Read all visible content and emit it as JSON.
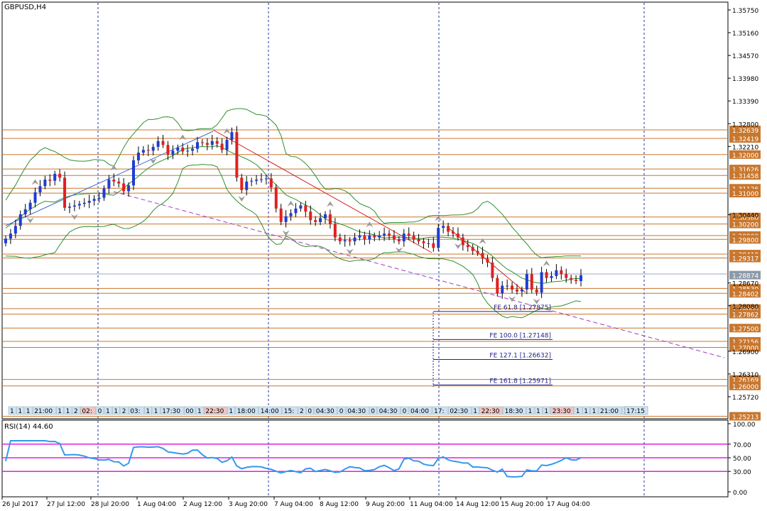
{
  "chart_data": {
    "type": "candlestick",
    "title": "GBPUSD,H4",
    "price_axis": {
      "range": [
        1.25,
        1.36
      ],
      "ticks": [
        "1.35750",
        "1.35160",
        "1.34570",
        "1.33980",
        "1.33390",
        "1.32800",
        "1.32210",
        "1.30440",
        "1.28670",
        "1.28080",
        "1.26900",
        "1.26310",
        "1.25720"
      ]
    },
    "x_axis": {
      "ticks": [
        "26 Jul 2017",
        "27 Jul 12:00",
        "28 Jul 20:00",
        "1 Aug 04:00",
        "2 Aug 12:00",
        "3 Aug 20:00",
        "7 Aug 04:00",
        "8 Aug 12:00",
        "9 Aug 20:00",
        "11 Aug 04:00",
        "14 Aug 12:00",
        "15 Aug 20:00",
        "17 Aug 04:00"
      ]
    },
    "current_price": "1.28874",
    "level_lines": [
      {
        "price": 1.32639,
        "label": "1.32639"
      },
      {
        "price": 1.32419,
        "label": "1.32419"
      },
      {
        "price": 1.32,
        "label": "1.32000"
      },
      {
        "price": 1.31626,
        "label": "1.31626"
      },
      {
        "price": 1.31458,
        "label": "1.31458"
      },
      {
        "price": 1.31126,
        "label": "1.31126"
      },
      {
        "price": 1.31,
        "label": "1.31000"
      },
      {
        "price": 1.3038,
        "label": "1.30380"
      },
      {
        "price": 1.302,
        "label": "1.30200"
      },
      {
        "price": 1.299,
        "label": "1.29900"
      },
      {
        "price": 1.298,
        "label": "1.29800"
      },
      {
        "price": 1.29419,
        "label": "1.29419"
      },
      {
        "price": 1.29317,
        "label": "1.29317"
      },
      {
        "price": 1.2853,
        "label": "1.28530"
      },
      {
        "price": 1.28402,
        "label": "1.28402"
      },
      {
        "price": 1.28005,
        "label": "1.28005"
      },
      {
        "price": 1.27862,
        "label": "1.27862"
      },
      {
        "price": 1.275,
        "label": "1.27500"
      },
      {
        "price": 1.27156,
        "label": "1.27156"
      },
      {
        "price": 1.27,
        "label": "1.27000"
      },
      {
        "price": 1.26169,
        "label": "1.26169"
      },
      {
        "price": 1.26,
        "label": "1.26000"
      },
      {
        "price": 1.25213,
        "label": "1.25213"
      }
    ],
    "fibo_lines": [
      {
        "label": "FE 61.8 [1.27875]",
        "price": 1.27875
      },
      {
        "label": "FE 100.0 [1.27148]",
        "price": 1.27148
      },
      {
        "label": "FE 127.1 [1.26632]",
        "price": 1.26632
      },
      {
        "label": "FE 161.8 [1.25971]",
        "price": 1.25971
      }
    ],
    "time_labels": [
      "1",
      "1",
      "1",
      "21:00",
      "1",
      "1",
      "2",
      "02:",
      "0",
      "1",
      "1",
      "2",
      "03:",
      "1",
      "1",
      "17:30",
      "00",
      "1",
      "22:30",
      "1",
      "18:00",
      "14:00",
      "15:",
      "2",
      "0",
      "04:30",
      "0",
      "04:30",
      "0",
      "04:30",
      "0",
      "04:00",
      "17:",
      "02:30",
      "1",
      "22:30",
      "18:30",
      "1",
      "1",
      "1",
      "23:30",
      "1",
      "1",
      "1",
      "21:00",
      "1",
      "1",
      "1",
      "20:45",
      "17:15"
    ],
    "closes": [
      1.2982,
      1.2995,
      1.3015,
      1.3045,
      1.3058,
      1.3075,
      1.3102,
      1.3118,
      1.3135,
      1.3132,
      1.315,
      1.314,
      1.3062,
      1.3065,
      1.3068,
      1.3072,
      1.3075,
      1.308,
      1.3085,
      1.3088,
      1.3112,
      1.3135,
      1.313,
      1.3125,
      1.3105,
      1.312,
      1.3185,
      1.3205,
      1.3212,
      1.321,
      1.322,
      1.3235,
      1.3225,
      1.32,
      1.321,
      1.3218,
      1.3208,
      1.321,
      1.3215,
      1.3232,
      1.323,
      1.3225,
      1.3235,
      1.3228,
      1.3212,
      1.3238,
      1.3258,
      1.314,
      1.3108,
      1.313,
      1.3132,
      1.3135,
      1.3136,
      1.3138,
      1.3115,
      1.306,
      1.3025,
      1.304,
      1.3048,
      1.306,
      1.3068,
      1.3052,
      1.303,
      1.3025,
      1.3035,
      1.3045,
      1.302,
      1.2985,
      1.2975,
      1.2978,
      1.2975,
      1.2985,
      1.299,
      1.298,
      1.299,
      1.2985,
      1.299,
      1.2995,
      1.299,
      1.298,
      1.2975,
      1.2995,
      1.299,
      1.298,
      1.2975,
      1.297,
      1.297,
      1.2958,
      1.301,
      1.3015,
      1.3,
      1.2995,
      1.2985,
      1.2965,
      1.296,
      1.295,
      1.2945,
      1.293,
      1.292,
      1.288,
      1.284,
      1.286,
      1.286,
      1.285,
      1.2845,
      1.285,
      1.289,
      1.285,
      1.2842,
      1.2895,
      1.288,
      1.2885,
      1.29,
      1.289,
      1.288,
      1.2875,
      1.2872,
      1.2887
    ],
    "indicators": {
      "rsi": {
        "label": "RSI(14) 44.60",
        "levels": [
          70,
          50,
          30
        ],
        "ticks": [
          "100.00",
          "70.00",
          "50.00",
          "30.00",
          "0.00"
        ],
        "range": [
          0,
          100
        ]
      }
    },
    "grid": true
  }
}
